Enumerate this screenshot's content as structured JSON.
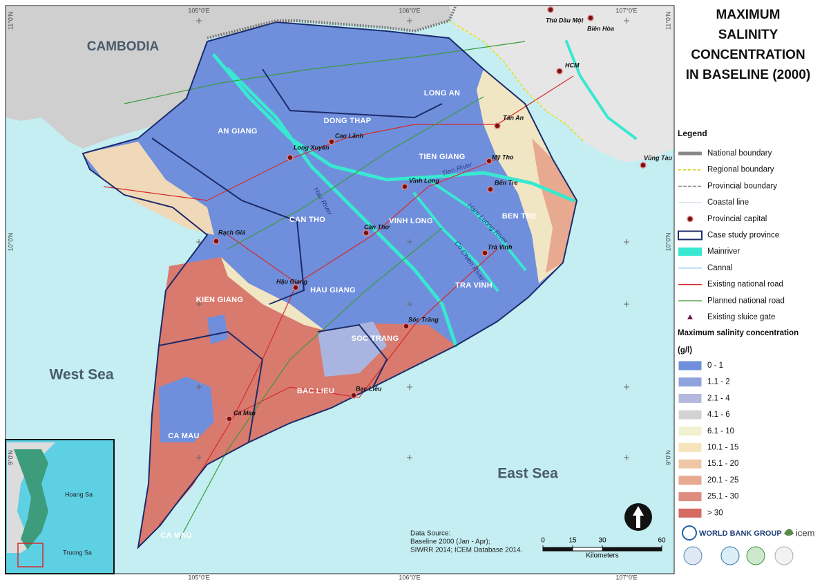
{
  "title": [
    "MAXIMUM",
    "SALINITY",
    "CONCENTRATION",
    "IN BASELINE (2000)"
  ],
  "legend": {
    "title": "Legend",
    "items": [
      "National boundary",
      "Regional boundary",
      "Provincial boundary",
      "Coastal line",
      "Provincial capital",
      "Case study province",
      "Mainriver",
      "Cannal",
      "Existing national road",
      "Planned national road",
      "Existing sluice gate"
    ],
    "salinity_title": "Maximum salinity concentration",
    "unit": "(g/l)",
    "classes": [
      {
        "label": "0 - 1",
        "color": "#6f8fdc"
      },
      {
        "label": "1.1 - 2",
        "color": "#8fa3dc"
      },
      {
        "label": "2.1 - 4",
        "color": "#b4b8dc"
      },
      {
        "label": "4.1 - 6",
        "color": "#d3d3d6"
      },
      {
        "label": "6.1 - 10",
        "color": "#f1f1d2"
      },
      {
        "label": "10.1 - 15",
        "color": "#f6e4bc"
      },
      {
        "label": "15.1 - 20",
        "color": "#efc7a4"
      },
      {
        "label": "20.1 - 25",
        "color": "#e7aa91"
      },
      {
        "label": "25.1 - 30",
        "color": "#de8c7d"
      },
      {
        "label": "> 30",
        "color": "#d46a63"
      }
    ]
  },
  "map": {
    "regions": [
      "AN GIANG",
      "DONG THAP",
      "LONG AN",
      "TIEN GIANG",
      "BEN TRE",
      "VINH LONG",
      "CAN THO",
      "TRA VINH",
      "HAU GIANG",
      "KIEN GIANG",
      "SOC TRANG",
      "BAC LIEU",
      "CA MAU",
      "CA MAU"
    ],
    "cities": [
      "Cao Lãnh",
      "Long Xuyên",
      "Mỹ Tho",
      "Tân An",
      "Vĩnh Long",
      "Bến Tre",
      "Rạch Giá",
      "Cần Thơ",
      "Trà Vinh",
      "Hậu Giang",
      "Sóc Trăng",
      "Bạc Liêu",
      "Cà Mau",
      "Thủ Dầu Một",
      "Biên Hòa",
      "HCM",
      "Vũng Tàu"
    ],
    "rivers": [
      "Tien River",
      "Hau River",
      "Ham Luong River",
      "Co Chien River"
    ],
    "seas": [
      "West Sea",
      "East Sea"
    ],
    "neighbors": [
      "CAMBODIA"
    ],
    "grid": {
      "lon": [
        "105°0'E",
        "106°0'E",
        "107°0'E"
      ],
      "lat": [
        "11°0'N",
        "10°0'N",
        "9°0'N"
      ]
    }
  },
  "scale": {
    "ticks": [
      0,
      15,
      30,
      60
    ],
    "unit": "Kilometers"
  },
  "source": [
    "Data Source:",
    "Baseline 2000 (Jan - Apr);",
    "SIWRR 2014; ICEM Database 2014."
  ],
  "inset": [
    "Hoang Sa",
    "Truong Sa"
  ],
  "logos": [
    "WORLD BANK GROUP",
    "icem"
  ]
}
